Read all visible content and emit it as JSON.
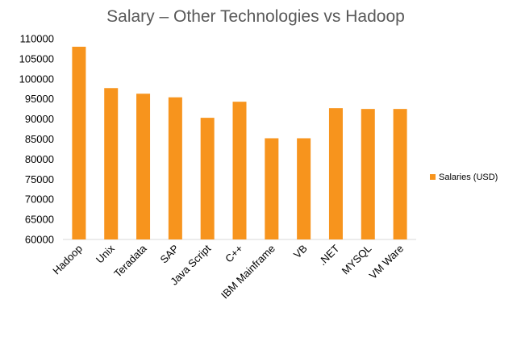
{
  "chart_data": {
    "type": "bar",
    "title": "Salary – Other Technologies vs Hadoop",
    "categories": [
      "Hadoop",
      "Unix",
      "Teradata",
      "SAP",
      "Java Script",
      "C++",
      "IBM Mainframe",
      "VB",
      ".NET",
      "MYSQL",
      "VM Ware"
    ],
    "series": [
      {
        "name": "Salaries (USD)",
        "values": [
          108000,
          97700,
          96300,
          95400,
          90300,
          94300,
          85200,
          85200,
          92700,
          92500,
          92500
        ],
        "color": "#F7941D"
      }
    ],
    "ylim": [
      60000,
      110000
    ],
    "yticks": [
      60000,
      65000,
      70000,
      75000,
      80000,
      85000,
      90000,
      95000,
      100000,
      105000,
      110000
    ],
    "grid": false,
    "legend": "right",
    "xlabel": "",
    "ylabel": ""
  }
}
